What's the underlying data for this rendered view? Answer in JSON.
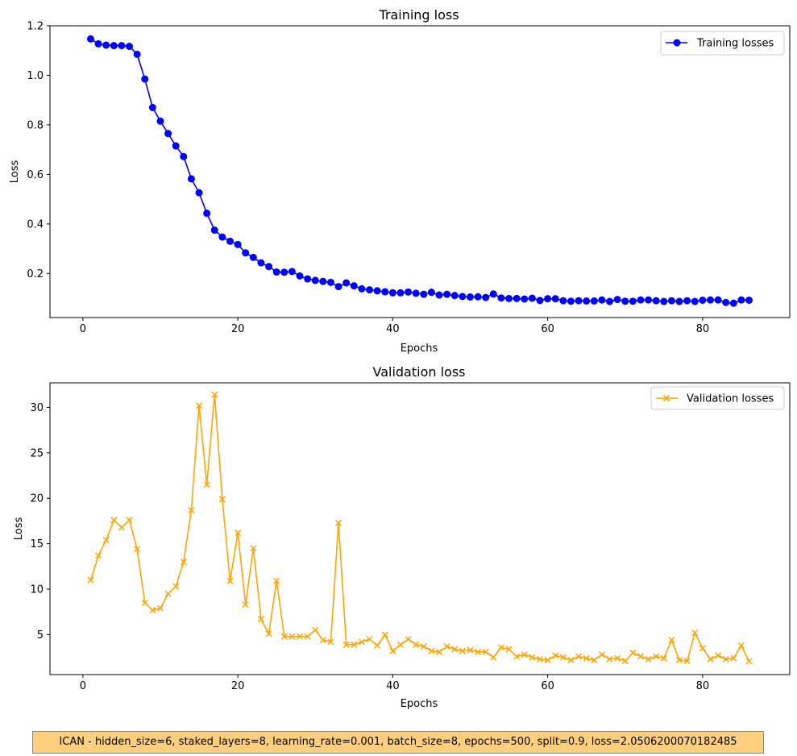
{
  "chart_data": [
    {
      "type": "line",
      "title": "Training loss",
      "xlabel": "Epochs",
      "ylabel": "Loss",
      "xlim": [
        -4.25,
        91.25
      ],
      "ylim": [
        0.022,
        1.2
      ],
      "xticks": [
        0,
        20,
        40,
        60,
        80
      ],
      "yticks": [
        0.2,
        0.4,
        0.6,
        0.8,
        1.0,
        1.2
      ],
      "ytick_labels": [
        "0.2",
        "0.4",
        "0.6",
        "0.8",
        "1.0",
        "1.2"
      ],
      "legend_position": "top-right",
      "color": "#0000ff",
      "marker": "o",
      "series": [
        {
          "name": "Training losses",
          "x": [
            1,
            2,
            3,
            4,
            5,
            6,
            7,
            8,
            9,
            10,
            11,
            12,
            13,
            14,
            15,
            16,
            17,
            18,
            19,
            20,
            21,
            22,
            23,
            24,
            25,
            26,
            27,
            28,
            29,
            30,
            31,
            32,
            33,
            34,
            35,
            36,
            37,
            38,
            39,
            40,
            41,
            42,
            43,
            44,
            45,
            46,
            47,
            48,
            49,
            50,
            51,
            52,
            53,
            54,
            55,
            56,
            57,
            58,
            59,
            60,
            61,
            62,
            63,
            64,
            65,
            66,
            67,
            68,
            69,
            70,
            71,
            72,
            73,
            74,
            75,
            76,
            77,
            78,
            79,
            80,
            81,
            82,
            83,
            84,
            85,
            86
          ],
          "values": [
            1.147,
            1.127,
            1.122,
            1.12,
            1.12,
            1.117,
            1.085,
            0.985,
            0.87,
            0.815,
            0.765,
            0.715,
            0.672,
            0.582,
            0.526,
            0.443,
            0.375,
            0.347,
            0.33,
            0.317,
            0.283,
            0.265,
            0.243,
            0.228,
            0.206,
            0.205,
            0.208,
            0.19,
            0.178,
            0.172,
            0.168,
            0.164,
            0.147,
            0.162,
            0.15,
            0.138,
            0.134,
            0.13,
            0.126,
            0.122,
            0.122,
            0.125,
            0.12,
            0.116,
            0.124,
            0.113,
            0.116,
            0.111,
            0.107,
            0.105,
            0.106,
            0.103,
            0.117,
            0.101,
            0.099,
            0.099,
            0.097,
            0.1,
            0.091,
            0.098,
            0.098,
            0.09,
            0.088,
            0.09,
            0.089,
            0.089,
            0.093,
            0.087,
            0.095,
            0.088,
            0.088,
            0.093,
            0.093,
            0.09,
            0.087,
            0.09,
            0.087,
            0.09,
            0.087,
            0.092,
            0.093,
            0.093,
            0.083,
            0.08,
            0.093,
            0.092
          ]
        }
      ]
    },
    {
      "type": "line",
      "title": "Validation loss",
      "xlabel": "Epochs",
      "ylabel": "Loss",
      "xlim": [
        -4.25,
        91.25
      ],
      "ylim": [
        0.6,
        32.7
      ],
      "xticks": [
        0,
        20,
        40,
        60,
        80
      ],
      "yticks": [
        5,
        10,
        15,
        20,
        25,
        30
      ],
      "legend_position": "top-right",
      "color": "#ffa500",
      "marker": "x",
      "series": [
        {
          "name": "Validation losses",
          "x": [
            1,
            2,
            3,
            4,
            5,
            6,
            7,
            8,
            9,
            10,
            11,
            12,
            13,
            14,
            15,
            16,
            17,
            18,
            19,
            20,
            21,
            22,
            23,
            24,
            25,
            26,
            27,
            28,
            29,
            30,
            31,
            32,
            33,
            34,
            35,
            36,
            37,
            38,
            39,
            40,
            41,
            42,
            43,
            44,
            45,
            46,
            47,
            48,
            49,
            50,
            51,
            52,
            53,
            54,
            55,
            56,
            57,
            58,
            59,
            60,
            61,
            62,
            63,
            64,
            65,
            66,
            67,
            68,
            69,
            70,
            71,
            72,
            73,
            74,
            75,
            76,
            77,
            78,
            79,
            80,
            81,
            82,
            83,
            84,
            85,
            86
          ],
          "values": [
            11.0,
            13.7,
            15.4,
            17.6,
            16.8,
            17.6,
            14.4,
            8.5,
            7.7,
            7.9,
            9.5,
            10.3,
            13.0,
            18.7,
            30.2,
            21.5,
            31.4,
            19.9,
            10.9,
            16.2,
            8.3,
            14.5,
            6.7,
            5.1,
            10.9,
            4.8,
            4.8,
            4.8,
            4.8,
            5.5,
            4.4,
            4.2,
            17.3,
            3.9,
            3.9,
            4.2,
            4.5,
            3.8,
            5.0,
            3.2,
            3.9,
            4.5,
            3.9,
            3.7,
            3.2,
            3.1,
            3.7,
            3.4,
            3.2,
            3.3,
            3.1,
            3.1,
            2.5,
            3.6,
            3.4,
            2.6,
            2.8,
            2.5,
            2.3,
            2.2,
            2.7,
            2.5,
            2.2,
            2.6,
            2.4,
            2.2,
            2.8,
            2.3,
            2.4,
            2.1,
            3.0,
            2.6,
            2.3,
            2.6,
            2.4,
            4.4,
            2.2,
            2.1,
            5.2,
            3.5,
            2.3,
            2.7,
            2.3,
            2.4,
            3.8,
            2.05
          ]
        }
      ]
    }
  ],
  "footer_text": "ICAN - hidden_size=6, staked_layers=8, learning_rate=0.001, batch_size=8, epochs=500, split=0.9, loss=2.0506200070182485"
}
